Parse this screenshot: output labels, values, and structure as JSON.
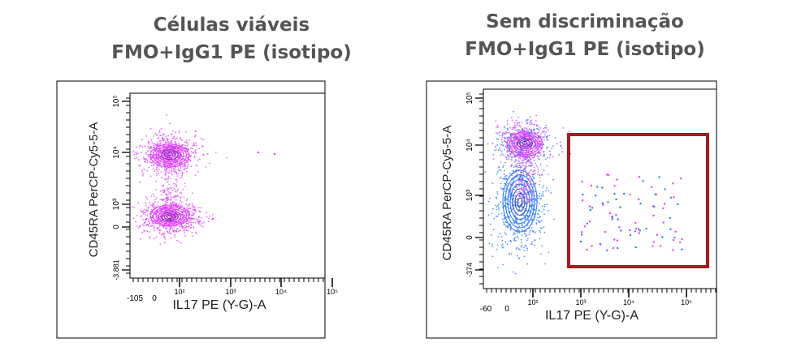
{
  "chart_data": [
    {
      "type": "scatter",
      "subtype": "flow-cytometry-contour-dot-plot",
      "title_lines": [
        "Células viáveis",
        "FMO+IgG1 PE (isotipo)"
      ],
      "xlabel": "IL17 PE (Y-G)-A",
      "ylabel": "CD45RA PerCP-Cy5-5-A",
      "x_scale": "biexponential",
      "y_scale": "biexponential",
      "xlim": [
        -105,
        250000
      ],
      "ylim": [
        -3881,
        250000
      ],
      "x_ticks": [
        "-105",
        "0",
        "10²",
        "10³",
        "10⁴",
        "10⁵"
      ],
      "y_ticks": [
        "-3.881",
        "0",
        "10³",
        "10⁴",
        "10⁵"
      ],
      "populations": [
        {
          "name": "",
          "x_center": 100,
          "y_center": 9000,
          "color": "#e040fb"
        },
        {
          "name": "",
          "x_center": 100,
          "y_center": 200,
          "color": "#e040fb"
        }
      ],
      "outliers": [
        {
          "x": 5000,
          "y": 9500
        },
        {
          "x": 12000,
          "y": 9000
        }
      ],
      "gate": null
    },
    {
      "type": "scatter",
      "subtype": "flow-cytometry-contour-dot-plot",
      "title_lines": [
        "Sem discriminação",
        "FMO+IgG1 PE (isotipo)"
      ],
      "xlabel": "IL17 PE (Y-G)-A",
      "ylabel": "CD45RA PerCP-Cy5-5-A",
      "x_scale": "biexponential",
      "y_scale": "biexponential",
      "xlim": [
        -60,
        250000
      ],
      "ylim": [
        -374,
        250000
      ],
      "x_ticks": [
        "-60",
        "0",
        "10²",
        "10³",
        "10⁴",
        "10⁵"
      ],
      "y_ticks": [
        "-374",
        "0",
        "10³",
        "10⁴",
        "10⁵"
      ],
      "populations": [
        {
          "name": "",
          "x_center": 100,
          "y_center": 10000,
          "color": "#e040fb"
        },
        {
          "name": "",
          "x_center": 100,
          "y_center": 300,
          "color": "#2979ff"
        }
      ],
      "gate": {
        "shape": "rectangle",
        "x_range": [
          500,
          250000
        ],
        "y_range": [
          -374,
          15000
        ],
        "color": "#a31d1d"
      }
    }
  ],
  "colors": {
    "axis": "#000000",
    "title_text": "#555555",
    "magenta": "#e040fb",
    "blue": "#2979ff",
    "gate": "#a31d1d"
  }
}
